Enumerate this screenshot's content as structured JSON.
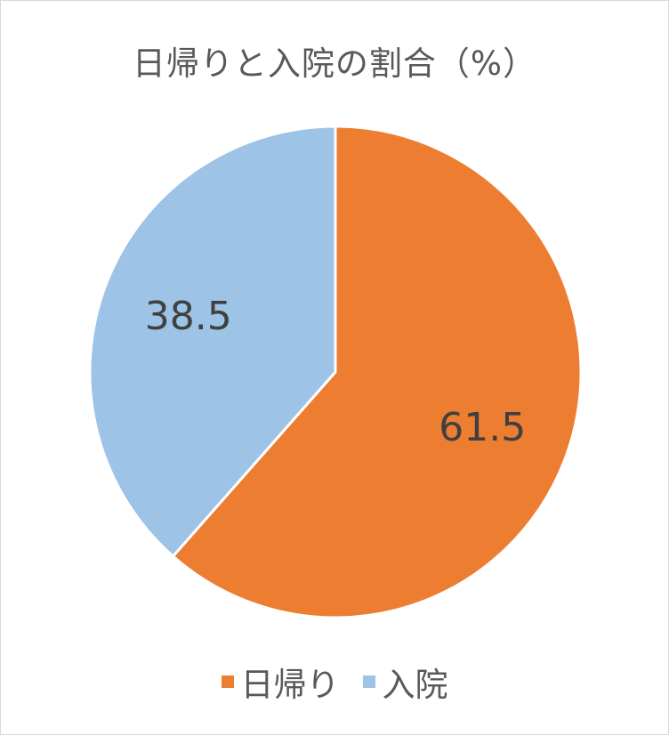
{
  "chart_data": {
    "type": "pie",
    "title": "日帰りと入院の割合（%）",
    "categories": [
      "日帰り",
      "入院"
    ],
    "values": [
      61.5,
      38.5
    ],
    "colors": [
      "#ED7D31",
      "#9DC3E6"
    ],
    "data_labels": [
      "61.5",
      "38.5"
    ],
    "start_angle_deg": 0,
    "direction": "clockwise",
    "legend_position": "bottom",
    "label_color": "#404040",
    "slice_border_color": "#FFFFFF"
  }
}
